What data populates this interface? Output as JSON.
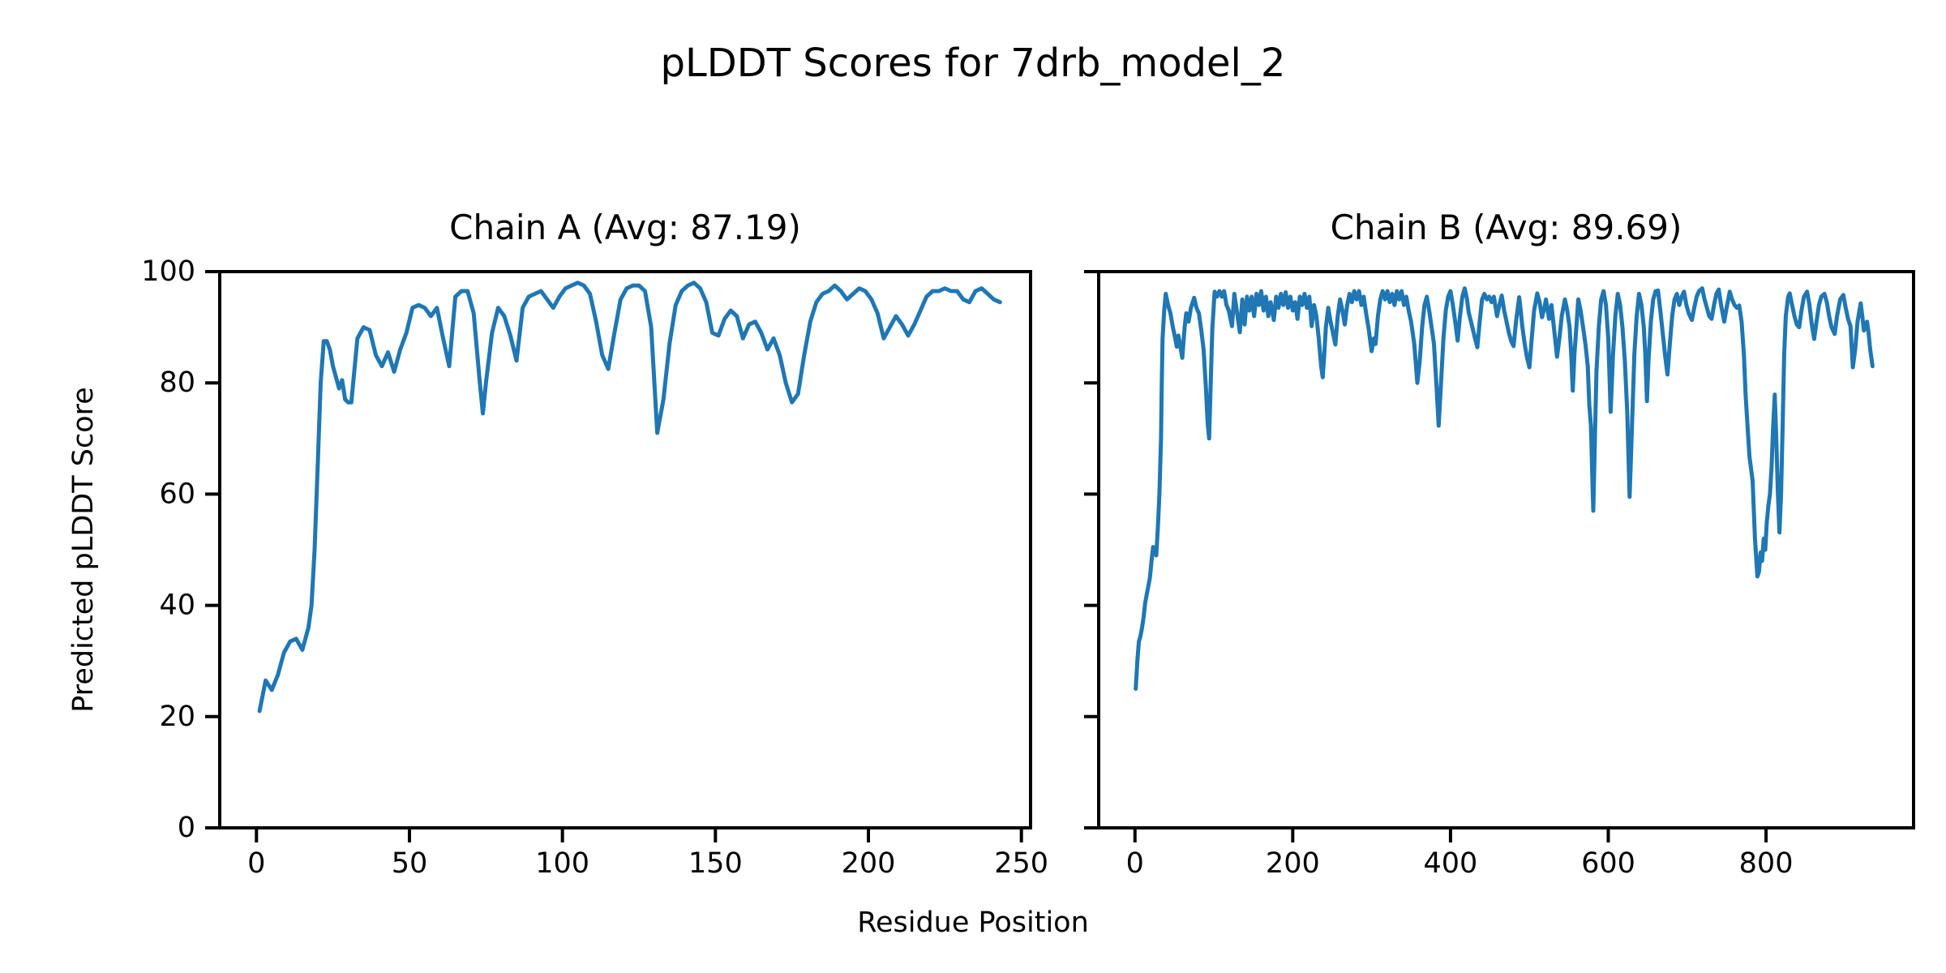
{
  "figure": {
    "title": "pLDDT Scores for 7drb_model_2",
    "xlabel": "Residue Position",
    "ylabel": "Predicted pLDDT Score",
    "background": "#ffffff",
    "text_color": "#000000"
  },
  "chart_data": [
    {
      "type": "line",
      "title": "Chain A (Avg: 87.19)",
      "avg": 87.19,
      "line_color": "#1f77b4",
      "xlim": [
        -12,
        253
      ],
      "ylim": [
        0,
        100
      ],
      "xticks": [
        0,
        50,
        100,
        150,
        200,
        250
      ],
      "yticks": [
        0,
        20,
        40,
        60,
        80,
        100
      ],
      "ytick_labels_visible": true,
      "grid": false,
      "legend": "none",
      "x": [
        1,
        3,
        5,
        7,
        9,
        11,
        13,
        15,
        17,
        18,
        19,
        20,
        21,
        22,
        23,
        24,
        25,
        26,
        27,
        28,
        29,
        30,
        31,
        33,
        35,
        37,
        39,
        41,
        43,
        45,
        47,
        49,
        51,
        53,
        55,
        57,
        59,
        61,
        63,
        65,
        67,
        69,
        71,
        73,
        74,
        75,
        77,
        79,
        81,
        83,
        85,
        87,
        89,
        91,
        93,
        95,
        97,
        99,
        101,
        103,
        105,
        107,
        109,
        111,
        113,
        115,
        117,
        119,
        121,
        123,
        125,
        127,
        129,
        131,
        133,
        135,
        137,
        139,
        141,
        143,
        145,
        147,
        149,
        151,
        153,
        155,
        157,
        159,
        161,
        163,
        165,
        167,
        169,
        171,
        173,
        175,
        177,
        179,
        181,
        183,
        185,
        187,
        189,
        191,
        193,
        195,
        197,
        199,
        201,
        203,
        205,
        207,
        209,
        211,
        213,
        215,
        217,
        219,
        221,
        223,
        225,
        227,
        229,
        231,
        233,
        235,
        237,
        239,
        241,
        243
      ],
      "y": [
        21,
        26.5,
        24.8,
        27.5,
        31.5,
        33.5,
        34,
        32,
        36,
        40,
        50,
        65,
        80,
        87.5,
        87.5,
        86,
        83,
        81,
        79,
        80.5,
        77,
        76.5,
        76.5,
        88,
        90,
        89.5,
        85,
        83,
        85.5,
        82,
        86,
        89,
        93.5,
        94,
        93.5,
        92,
        93.5,
        88,
        83,
        95.5,
        96.5,
        96.5,
        92.5,
        80,
        74.5,
        80,
        89,
        93.5,
        92,
        88.5,
        84,
        93.5,
        95.5,
        96,
        96.5,
        95,
        93.5,
        95.5,
        97,
        97.5,
        98,
        97.5,
        96,
        91,
        85,
        82.5,
        89,
        95,
        97,
        97.5,
        97.5,
        96.5,
        90,
        71,
        77,
        87,
        94,
        96.5,
        97.5,
        98,
        97,
        94.5,
        89,
        88.5,
        91.5,
        93,
        92,
        88,
        90.5,
        91,
        89,
        86,
        88,
        85,
        80,
        76.5,
        78,
        85,
        91,
        94.5,
        96,
        96.5,
        97.5,
        96.5,
        95,
        96,
        97,
        96.5,
        95,
        92.5,
        88,
        90,
        92,
        90.5,
        88.5,
        90.5,
        93,
        95.5,
        96.5,
        96.5,
        97,
        96.5,
        96.5,
        95,
        94.5,
        96.5,
        97,
        96,
        95,
        94.5
      ]
    },
    {
      "type": "line",
      "title": "Chain B (Avg: 89.69)",
      "avg": 89.69,
      "line_color": "#1f77b4",
      "xlim": [
        -46,
        987
      ],
      "ylim": [
        0,
        100
      ],
      "xticks": [
        0,
        200,
        400,
        600,
        800
      ],
      "yticks": [
        0,
        20,
        40,
        60,
        80,
        100
      ],
      "ytick_labels_visible": false,
      "grid": false,
      "legend": "none",
      "x": [
        1,
        3,
        5,
        7,
        9,
        11,
        13,
        15,
        17,
        19,
        21,
        23,
        25,
        27,
        29,
        31,
        33,
        34,
        35,
        37,
        39,
        42,
        45,
        48,
        51,
        53,
        55,
        57,
        60,
        63,
        65,
        68,
        71,
        75,
        78,
        81,
        84,
        87,
        90,
        92,
        94,
        96,
        98,
        101,
        104,
        107,
        110,
        113,
        116,
        119,
        123,
        126,
        129,
        133,
        136,
        139,
        142,
        145,
        148,
        151,
        154,
        157,
        160,
        163,
        166,
        169,
        172,
        176,
        179,
        182,
        185,
        188,
        191,
        194,
        197,
        200,
        203,
        206,
        209,
        212,
        215,
        218,
        221,
        224,
        227,
        230,
        233,
        236,
        238,
        240,
        242,
        245,
        248,
        251,
        254,
        257,
        260,
        263,
        266,
        269,
        272,
        275,
        278,
        281,
        284,
        287,
        290,
        293,
        296,
        300,
        303,
        305,
        308,
        311,
        314,
        317,
        320,
        323,
        326,
        329,
        332,
        335,
        338,
        341,
        344,
        347,
        350,
        354,
        358,
        361,
        364,
        367,
        370,
        373,
        376,
        379,
        382,
        385,
        388,
        391,
        394,
        397,
        400,
        403,
        406,
        409,
        412,
        415,
        418,
        421,
        423,
        426,
        428,
        431,
        434,
        437,
        440,
        443,
        446,
        449,
        452,
        455,
        459,
        462,
        465,
        468,
        471,
        474,
        477,
        480,
        483,
        487,
        489,
        491,
        494,
        497,
        500,
        503,
        506,
        510,
        513,
        516,
        519,
        521,
        525,
        528,
        531,
        535,
        538,
        541,
        545,
        548,
        551,
        553,
        555,
        557,
        560,
        562,
        565,
        568,
        571,
        574,
        576,
        578,
        580,
        581,
        583,
        585,
        588,
        591,
        594,
        597,
        600,
        603,
        606,
        609,
        612,
        615,
        618,
        621,
        624,
        627,
        630,
        633,
        636,
        639,
        642,
        645,
        647,
        649,
        651,
        654,
        657,
        660,
        663,
        666,
        669,
        672,
        675,
        678,
        681,
        684,
        687,
        690,
        693,
        696,
        699,
        702,
        706,
        709,
        712,
        715,
        719,
        722,
        725,
        728,
        731,
        734,
        737,
        740,
        743,
        747,
        750,
        754,
        757,
        760,
        763,
        766,
        769,
        772,
        774,
        776,
        779,
        783,
        786,
        789,
        791,
        793,
        795,
        797,
        799,
        801,
        803,
        805,
        807,
        809,
        811,
        813,
        815,
        817,
        819,
        821,
        823,
        825,
        828,
        830,
        833,
        836,
        839,
        842,
        845,
        848,
        852,
        855,
        858,
        861,
        864,
        867,
        870,
        874,
        877,
        880,
        883,
        887,
        890,
        894,
        898,
        901,
        904,
        907,
        910,
        913,
        916,
        920,
        922,
        924,
        926,
        928,
        930,
        932,
        935
      ],
      "y": [
        25,
        30,
        33.5,
        34.5,
        36,
        38,
        40.5,
        42,
        43.5,
        45,
        48,
        50.5,
        50,
        49,
        54,
        60,
        70,
        80,
        88,
        93,
        96,
        94,
        92.5,
        90,
        88,
        86.5,
        88.5,
        87,
        84.5,
        90,
        92.5,
        91,
        93.5,
        95.3,
        93.5,
        92.5,
        89.5,
        86,
        79,
        73,
        70,
        80,
        89.5,
        96.4,
        95.5,
        96.5,
        95.5,
        96.5,
        94,
        93,
        90.2,
        96,
        93,
        89.1,
        95,
        90.5,
        95.5,
        93,
        95.5,
        92,
        96,
        94,
        96.5,
        93,
        95.5,
        92,
        94.5,
        91.3,
        95.5,
        93.5,
        96,
        94,
        96.3,
        93.5,
        95.5,
        93,
        94.5,
        91.5,
        95.5,
        94,
        96,
        93.5,
        95.5,
        90.2,
        94,
        92,
        88,
        83,
        81,
        85,
        90,
        93.5,
        91,
        89,
        86.9,
        92,
        95,
        93,
        90.5,
        94,
        96,
        94.5,
        96.5,
        95,
        96.5,
        94,
        95.5,
        92.5,
        90,
        85.7,
        88,
        87,
        92,
        95,
        96.5,
        95,
        96.5,
        94.5,
        96,
        94,
        96.5,
        95,
        96.5,
        94,
        95.5,
        93,
        91,
        87,
        80,
        84,
        90,
        94,
        95.5,
        93,
        90,
        87,
        80,
        72.3,
        80,
        88,
        93,
        95.5,
        96.5,
        94,
        91,
        87.6,
        92,
        95.5,
        97,
        95,
        92.7,
        91,
        89.8,
        88,
        86.4,
        91,
        95,
        96,
        95,
        95.5,
        94.5,
        95.5,
        92,
        94,
        95.7,
        93,
        91,
        89,
        87.5,
        86.6,
        91,
        95.4,
        93,
        90.2,
        87,
        84.5,
        82.8,
        88,
        93,
        96.1,
        94.5,
        91.8,
        93.5,
        95,
        91.5,
        94,
        90,
        84.7,
        88,
        92,
        95,
        93,
        90,
        85,
        78.6,
        85,
        91,
        95,
        93,
        90,
        87,
        83,
        76,
        72.3,
        62,
        57,
        70,
        82,
        90,
        95,
        96.5,
        94,
        88,
        74.8,
        85,
        92,
        96,
        94,
        90,
        84,
        75,
        59.5,
        72,
        85,
        92,
        96,
        94,
        90,
        85,
        76.7,
        84,
        91,
        95,
        96.5,
        96.6,
        93,
        89,
        85,
        81.5,
        87,
        92,
        95,
        96,
        94,
        95.5,
        96.4,
        94,
        92.5,
        91.3,
        93.5,
        95.5,
        96.5,
        97,
        95,
        93.5,
        92,
        91.5,
        94,
        96,
        96.8,
        94,
        91,
        93.5,
        96.4,
        95,
        94,
        93.5,
        93.9,
        91,
        85,
        78,
        73.5,
        66.8,
        62.4,
        52,
        45.2,
        46,
        49.5,
        48,
        52,
        50,
        55,
        58,
        60,
        65,
        72,
        77.9,
        70,
        60,
        53.1,
        60,
        72,
        85,
        92,
        95.5,
        96.1,
        94,
        92,
        90.5,
        90,
        93,
        95.5,
        96.4,
        94,
        90.5,
        87.9,
        91,
        94,
        95.5,
        96,
        94.5,
        92,
        90,
        88.8,
        92,
        95,
        95.8,
        93.5,
        91.5,
        90.2,
        82.8,
        86,
        91,
        94.3,
        92,
        89.4,
        90,
        91,
        89,
        86,
        83
      ]
    }
  ]
}
